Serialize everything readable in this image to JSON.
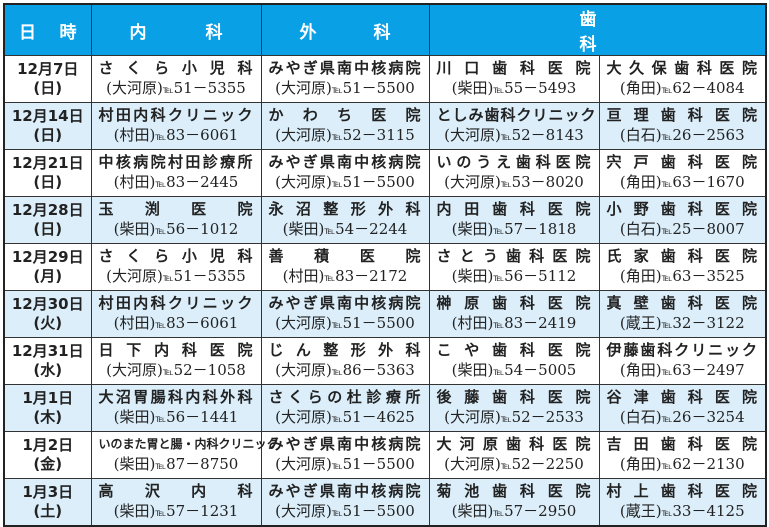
{
  "header": {
    "date": "日 時",
    "internal": "内 科",
    "surgery": "外 科",
    "dental": "歯 科"
  },
  "tel_label": "℡",
  "rows": [
    {
      "date": "12月7日",
      "day": "(日)",
      "internal": {
        "name": "さくら小児科",
        "area": "(大河原)",
        "tel": "51－5355"
      },
      "surgery": {
        "name": "みやぎ県南中核病院",
        "area": "(大河原)",
        "tel": "51－5500"
      },
      "dental1": {
        "name": "川口歯科医院",
        "area": "(柴田)",
        "tel": "55－5493"
      },
      "dental2": {
        "name": "大久保歯科医院",
        "area": "(角田)",
        "tel": "62－4084"
      }
    },
    {
      "date": "12月14日",
      "day": "(日)",
      "internal": {
        "name": "村田内科クリニック",
        "area": "(村田)",
        "tel": "83－6061"
      },
      "surgery": {
        "name": "かわち医院",
        "area": "(大河原)",
        "tel": "52－3115"
      },
      "dental1": {
        "name": "としみ歯科クリニック",
        "area": "(大河原)",
        "tel": "52－8143"
      },
      "dental2": {
        "name": "亘理歯科医院",
        "area": "(白石)",
        "tel": "26－2563"
      }
    },
    {
      "date": "12月21日",
      "day": "(日)",
      "internal": {
        "name": "中核病院村田診療所",
        "area": "(村田)",
        "tel": "83－2445"
      },
      "surgery": {
        "name": "みやぎ県南中核病院",
        "area": "(大河原)",
        "tel": "51－5500"
      },
      "dental1": {
        "name": "いのうえ歯科医院",
        "area": "(大河原)",
        "tel": "53－8020"
      },
      "dental2": {
        "name": "宍戸歯科医院",
        "area": "(角田)",
        "tel": "63－1670"
      }
    },
    {
      "date": "12月28日",
      "day": "(日)",
      "internal": {
        "name": "玉渕医院",
        "area": "(柴田)",
        "tel": "56－1012"
      },
      "surgery": {
        "name": "永沼整形外科",
        "area": "(柴田)",
        "tel": "54－2244"
      },
      "dental1": {
        "name": "内田歯科医院",
        "area": "(柴田)",
        "tel": "57－1818"
      },
      "dental2": {
        "name": "小野歯科医院",
        "area": "(白石)",
        "tel": "25－8007"
      }
    },
    {
      "date": "12月29日",
      "day": "(月)",
      "internal": {
        "name": "さくら小児科",
        "area": "(大河原)",
        "tel": "51－5355"
      },
      "surgery": {
        "name": "善積医院",
        "area": "(村田)",
        "tel": "83－2172"
      },
      "dental1": {
        "name": "さとう歯科医院",
        "area": "(柴田)",
        "tel": "56－5112"
      },
      "dental2": {
        "name": "氏家歯科医院",
        "area": "(角田)",
        "tel": "63－3525"
      }
    },
    {
      "date": "12月30日",
      "day": "(火)",
      "internal": {
        "name": "村田内科クリニック",
        "area": "(村田)",
        "tel": "83－6061"
      },
      "surgery": {
        "name": "みやぎ県南中核病院",
        "area": "(大河原)",
        "tel": "51－5500"
      },
      "dental1": {
        "name": "榊原歯科医院",
        "area": "(村田)",
        "tel": "83－2419"
      },
      "dental2": {
        "name": "真壁歯科医院",
        "area": "(蔵王)",
        "tel": "32－3122"
      }
    },
    {
      "date": "12月31日",
      "day": "(水)",
      "internal": {
        "name": "日下内科医院",
        "area": "(大河原)",
        "tel": "52－1058"
      },
      "surgery": {
        "name": "じん整形外科",
        "area": "(大河原)",
        "tel": "86－5363"
      },
      "dental1": {
        "name": "こや歯科医院",
        "area": "(柴田)",
        "tel": "54－5005"
      },
      "dental2": {
        "name": "伊藤歯科クリニック",
        "area": "(角田)",
        "tel": "63－2497"
      }
    },
    {
      "date": "1月1日",
      "day": "(木)",
      "internal": {
        "name": "大沼胃腸科内科外科",
        "area": "(柴田)",
        "tel": "56－1441"
      },
      "surgery": {
        "name": "さくらの杜診療所",
        "area": "(大河原)",
        "tel": "51－4625"
      },
      "dental1": {
        "name": "後藤歯科医院",
        "area": "(大河原)",
        "tel": "52－2533"
      },
      "dental2": {
        "name": "谷津歯科医院",
        "area": "(白石)",
        "tel": "26－3254"
      }
    },
    {
      "date": "1月2日",
      "day": "(金)",
      "internal": {
        "name": "いのまた胃と腸・内科クリニック",
        "area": "(柴田)",
        "tel": "87－8750"
      },
      "surgery": {
        "name": "みやぎ県南中核病院",
        "area": "(大河原)",
        "tel": "51－5500"
      },
      "dental1": {
        "name": "大河原歯科医院",
        "area": "(大河原)",
        "tel": "52－2250"
      },
      "dental2": {
        "name": "吉田歯科医院",
        "area": "(角田)",
        "tel": "62－2130"
      }
    },
    {
      "date": "1月3日",
      "day": "(土)",
      "internal": {
        "name": "高沢内科",
        "area": "(柴田)",
        "tel": "57－1231"
      },
      "surgery": {
        "name": "みやぎ県南中核病院",
        "area": "(大河原)",
        "tel": "51－5500"
      },
      "dental1": {
        "name": "菊池歯科医院",
        "area": "(柴田)",
        "tel": "57－2950"
      },
      "dental2": {
        "name": "村上歯科医院",
        "area": "(蔵王)",
        "tel": "33－4125"
      }
    }
  ],
  "colors": {
    "header_bg": "#0aa0e6",
    "alt_row_bg": "#dbeefa",
    "border": "#333333"
  }
}
